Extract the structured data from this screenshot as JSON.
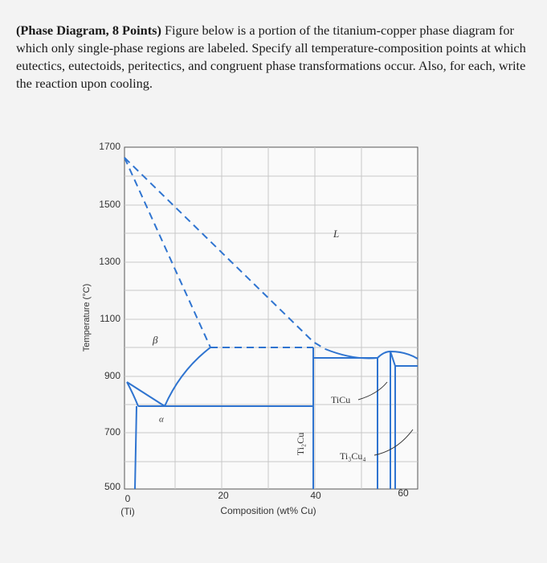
{
  "question": {
    "lead": "(Phase Diagram, 8 Points)",
    "text": " Figure below is a portion of the titanium-copper phase diagram for which only single-phase regions are labeled. Specify all temperature-composition points at which eutectics, eutectoids, peritectics, and congruent phase transformations occur. Also, for each, write the reaction upon cooling."
  },
  "figure": {
    "y_label": "Temperature (°C)",
    "x_label": "Composition (wt% Cu)",
    "yticks": [
      1700,
      1500,
      1300,
      1100,
      900,
      700,
      500
    ],
    "xticks": [
      0,
      20,
      40,
      60
    ],
    "x_origin_note": "(Ti)",
    "regions": {
      "liquid": "L",
      "beta": "β",
      "alpha": "α",
      "ti2cu": "Ti₂Cu",
      "ticu": "TiCu",
      "ti3cu4": "Ti₃Cu₄"
    }
  }
}
